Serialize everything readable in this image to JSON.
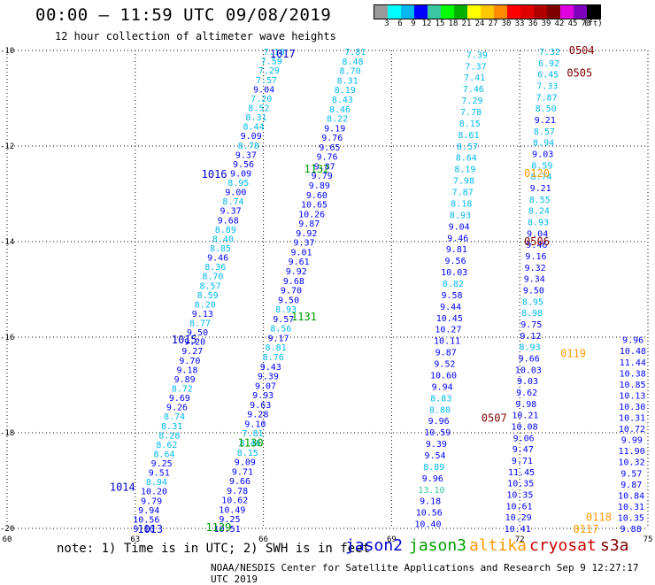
{
  "header": {
    "title": "00:00 – 11:59 UTC 09/08/2019",
    "subtitle": "12 hour collection of altimeter wave heights"
  },
  "legend": {
    "colors": [
      "#9a9a9a",
      "#00ffff",
      "#00b8f0",
      "#0000ff",
      "#3ac8a0",
      "#00ff00",
      "#00b000",
      "#ffff00",
      "#ffc800",
      "#ff8c00",
      "#ff0000",
      "#e00000",
      "#b00000",
      "#800000",
      "#e000e0",
      "#8000c0",
      "#000000"
    ],
    "labels": [
      "3",
      "6",
      "9",
      "12",
      "15",
      "18",
      "21",
      "24",
      "27",
      "30",
      "33",
      "36",
      "39",
      "42",
      "45",
      "70"
    ],
    "unit": "(ft)"
  },
  "axes": {
    "lat_labels": [
      "-10",
      "-12",
      "-14",
      "-16",
      "-18",
      "-20"
    ],
    "lon_labels": [
      "60",
      "63",
      "66",
      "69",
      "72",
      "75"
    ]
  },
  "footer": {
    "note": "note: 1) Time is in UTC; 2) SWH is in feet",
    "satellites": [
      {
        "name": "jason2",
        "color": "#0000cc"
      },
      {
        "name": "jason3",
        "color": "#00a000"
      },
      {
        "name": "altika",
        "color": "#ff9900"
      },
      {
        "name": "cryosat",
        "color": "#cc0000"
      },
      {
        "name": "s3a",
        "color": "#800000"
      }
    ],
    "credit": "NOAA/NESDIS Center for Satellite Applications and Research   Sep  9 12:27:17 UTC 2019"
  },
  "chart_data": {
    "type": "scatter",
    "title": "00:00 – 11:59 UTC 09/08/2019",
    "x_axis": {
      "label": "",
      "range": [
        60,
        75
      ],
      "ticks": [
        60,
        63,
        66,
        69,
        72,
        75
      ]
    },
    "y_axis": {
      "label": "",
      "range": [
        -20,
        -10
      ],
      "ticks": [
        -10,
        -12,
        -14,
        -16,
        -18,
        -20
      ]
    },
    "grid": true,
    "track_markers": [
      {
        "text": "1017",
        "lon": 66.45,
        "lat": -10.06,
        "color": "#0000cc"
      },
      {
        "text": "1016",
        "lon": 64.85,
        "lat": -12.57,
        "color": "#0000cc"
      },
      {
        "text": "1015",
        "lon": 64.15,
        "lat": -16.04,
        "color": "#0000cc"
      },
      {
        "text": "1014",
        "lon": 62.7,
        "lat": -19.12,
        "color": "#0000cc"
      },
      {
        "text": "1013",
        "lon": 63.35,
        "lat": -20.0,
        "color": "#0000cc"
      },
      {
        "text": "1132",
        "lon": 67.25,
        "lat": -12.46,
        "color": "#009900"
      },
      {
        "text": "1131",
        "lon": 66.95,
        "lat": -15.56,
        "color": "#009900"
      },
      {
        "text": "1130",
        "lon": 65.7,
        "lat": -18.19,
        "color": "#009900"
      },
      {
        "text": "1129",
        "lon": 64.95,
        "lat": -19.96,
        "color": "#009900"
      },
      {
        "text": "0504",
        "lon": 73.45,
        "lat": -9.98,
        "color": "#800000"
      },
      {
        "text": "0505",
        "lon": 73.4,
        "lat": -10.45,
        "color": "#800000"
      },
      {
        "text": "0506",
        "lon": 72.4,
        "lat": -13.98,
        "color": "#800000"
      },
      {
        "text": "0507",
        "lon": 71.4,
        "lat": -17.68,
        "color": "#800000"
      },
      {
        "text": "0120",
        "lon": 72.4,
        "lat": -12.56,
        "color": "#ff9900"
      },
      {
        "text": "0119",
        "lon": 73.25,
        "lat": -16.32,
        "color": "#ff9900"
      },
      {
        "text": "0118",
        "lon": 73.85,
        "lat": -19.75,
        "color": "#ff9900"
      },
      {
        "text": "0117",
        "lon": 73.55,
        "lat": -20.0,
        "color": "#ff9900"
      }
    ],
    "series": [
      {
        "sat": "jason2",
        "track": "A",
        "start": [
          66.25,
          -10.02
        ],
        "end": [
          63.2,
          -20.0
        ],
        "values": [
          7.18,
          7.59,
          7.29,
          7.57,
          9.04,
          7.2,
          8.52,
          8.31,
          8.44,
          9.09,
          8.78,
          9.37,
          9.56,
          9.09,
          8.95,
          9.0,
          8.74,
          9.37,
          9.68,
          8.89,
          8.4,
          8.85,
          9.46,
          8.36,
          8.7,
          8.57,
          8.59,
          8.2,
          9.13,
          8.77,
          9.5,
          9.2,
          9.27,
          9.7,
          9.18,
          9.89,
          8.72,
          9.69,
          9.26,
          8.74,
          8.31,
          8.28,
          8.62,
          8.64,
          9.25,
          9.51,
          8.94,
          10.2,
          9.79,
          9.94,
          10.56,
          9.16
        ]
      },
      {
        "sat": "jason2",
        "track": "B",
        "start": [
          68.15,
          -10.02
        ],
        "end": [
          65.15,
          -20.0
        ],
        "values": [
          7.81,
          8.48,
          8.7,
          8.31,
          8.19,
          8.43,
          8.46,
          8.22,
          9.19,
          9.76,
          9.65,
          9.76,
          9.87,
          9.79,
          9.89,
          9.6,
          10.65,
          10.26,
          9.87,
          9.92,
          9.37,
          9.01,
          9.61,
          9.92,
          9.68,
          9.7,
          9.5,
          8.93,
          9.57,
          8.56,
          9.17,
          8.81,
          8.76,
          9.43,
          9.39,
          9.07,
          9.93,
          9.63,
          9.28,
          9.1,
          7.81,
          8.46,
          8.15,
          9.09,
          9.71,
          9.66,
          9.78,
          10.62,
          10.49,
          9.25,
          10.51
        ]
      },
      {
        "sat": "jason2",
        "track": "C",
        "start": [
          71.0,
          -10.08
        ],
        "end": [
          69.85,
          -19.9
        ],
        "values": [
          7.39,
          7.37,
          7.41,
          7.46,
          7.29,
          7.78,
          8.15,
          8.61,
          8.57,
          8.64,
          8.19,
          7.98,
          7.87,
          8.18,
          8.93,
          9.04,
          9.46,
          9.81,
          9.56,
          10.03,
          8.82,
          9.58,
          9.44,
          10.45,
          10.27,
          10.11,
          9.87,
          9.52,
          10.6,
          9.94,
          8.83,
          8.88,
          9.96,
          10.59,
          9.39,
          9.54,
          8.89,
          9.96,
          13.1,
          9.18,
          10.56,
          10.4
        ]
      },
      {
        "sat": "jason2",
        "track": "D",
        "start": [
          72.7,
          -10.02
        ],
        "end": [
          71.95,
          -20.0
        ],
        "values": [
          7.32,
          6.92,
          6.45,
          7.33,
          7.87,
          8.5,
          9.21,
          8.57,
          8.94,
          9.03,
          8.59,
          8.74,
          9.21,
          8.55,
          8.24,
          8.93,
          9.04,
          9.46,
          9.16,
          9.32,
          9.34,
          9.5,
          8.95,
          8.98,
          9.75,
          9.12,
          8.93,
          9.66,
          10.03,
          9.03,
          9.62,
          9.98,
          10.21,
          10.08,
          9.06,
          9.47,
          9.71,
          11.45,
          10.35,
          10.35,
          10.61,
          10.29,
          10.41
        ]
      },
      {
        "sat": "jason2",
        "track": "E",
        "start": [
          74.65,
          -16.05
        ],
        "end": [
          74.6,
          -20.0
        ],
        "values": [
          9.96,
          10.48,
          11.44,
          10.38,
          10.85,
          10.13,
          10.3,
          10.31,
          10.72,
          9.99,
          11.9,
          10.32,
          9.57,
          9.87,
          10.84,
          10.31,
          10.35,
          9.88
        ]
      }
    ]
  }
}
